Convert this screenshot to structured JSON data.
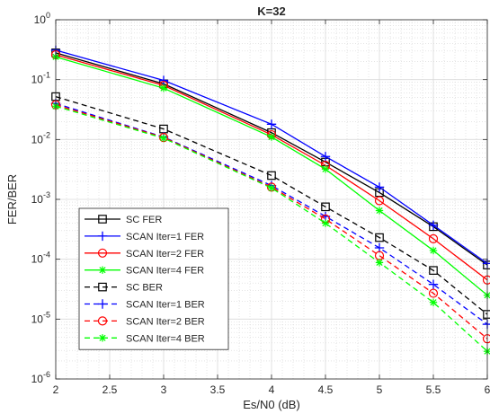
{
  "chart_data": {
    "type": "line",
    "title": "K=32",
    "xlabel": "Es/N0 (dB)",
    "ylabel": "FER/BER",
    "y_scale": "log",
    "xlim": [
      2,
      6
    ],
    "ylim": [
      1e-06,
      1
    ],
    "x_ticks": [
      {
        "value": 2,
        "label": "2"
      },
      {
        "value": 2.5,
        "label": "2.5"
      },
      {
        "value": 3,
        "label": "3"
      },
      {
        "value": 3.5,
        "label": "3.5"
      },
      {
        "value": 4,
        "label": "4"
      },
      {
        "value": 4.5,
        "label": "4.5"
      },
      {
        "value": 5,
        "label": "5"
      },
      {
        "value": 5.5,
        "label": "5.5"
      },
      {
        "value": 6,
        "label": "6"
      }
    ],
    "y_ticks": [
      {
        "exp": 0,
        "base": "10",
        "power": "0"
      },
      {
        "exp": -1,
        "base": "10",
        "power": "-1"
      },
      {
        "exp": -2,
        "base": "10",
        "power": "-2"
      },
      {
        "exp": -3,
        "base": "10",
        "power": "-3"
      },
      {
        "exp": -4,
        "base": "10",
        "power": "-4"
      },
      {
        "exp": -5,
        "base": "10",
        "power": "-5"
      },
      {
        "exp": -6,
        "base": "10",
        "power": "-6"
      }
    ],
    "grid": true,
    "minor_grid": true,
    "legend_position": "bottom-left",
    "x": [
      2,
      3,
      4,
      4.5,
      5,
      5.5,
      6
    ],
    "series": [
      {
        "name": "SC FER",
        "color": "#000000",
        "dash": "solid",
        "marker": "square",
        "values": [
          0.28,
          0.085,
          0.013,
          0.0042,
          0.0013,
          0.00035,
          8e-05
        ]
      },
      {
        "name": "SCAN Iter=1 FER",
        "color": "#0000ff",
        "dash": "solid",
        "marker": "plus",
        "values": [
          0.31,
          0.097,
          0.018,
          0.0052,
          0.0016,
          0.00037,
          8.5e-05
        ]
      },
      {
        "name": "SCAN Iter=2 FER",
        "color": "#ff0000",
        "dash": "solid",
        "marker": "circle",
        "values": [
          0.26,
          0.08,
          0.012,
          0.0037,
          0.00095,
          0.00022,
          4.5e-05
        ]
      },
      {
        "name": "SCAN Iter=4 FER",
        "color": "#00ff00",
        "dash": "solid",
        "marker": "asterisk",
        "values": [
          0.24,
          0.072,
          0.011,
          0.0032,
          0.00065,
          0.00014,
          2.5e-05
        ]
      },
      {
        "name": "SC BER",
        "color": "#000000",
        "dash": "dashed",
        "marker": "square",
        "values": [
          0.052,
          0.015,
          0.0025,
          0.00075,
          0.00023,
          6.5e-05,
          1.2e-05
        ]
      },
      {
        "name": "SCAN Iter=1 BER",
        "color": "#0000ff",
        "dash": "dashed",
        "marker": "plus",
        "values": [
          0.04,
          0.011,
          0.0017,
          0.00052,
          0.000155,
          3.8e-05,
          8.2e-06
        ]
      },
      {
        "name": "SCAN Iter=2 BER",
        "color": "#ff0000",
        "dash": "dashed",
        "marker": "circle",
        "values": [
          0.038,
          0.0108,
          0.0016,
          0.00047,
          0.000115,
          2.7e-05,
          4.7e-06
        ]
      },
      {
        "name": "SCAN Iter=4 BER",
        "color": "#00ff00",
        "dash": "dashed",
        "marker": "asterisk",
        "values": [
          0.036,
          0.0105,
          0.00155,
          0.0004,
          8.8e-05,
          1.9e-05,
          2.9e-06
        ]
      }
    ]
  }
}
